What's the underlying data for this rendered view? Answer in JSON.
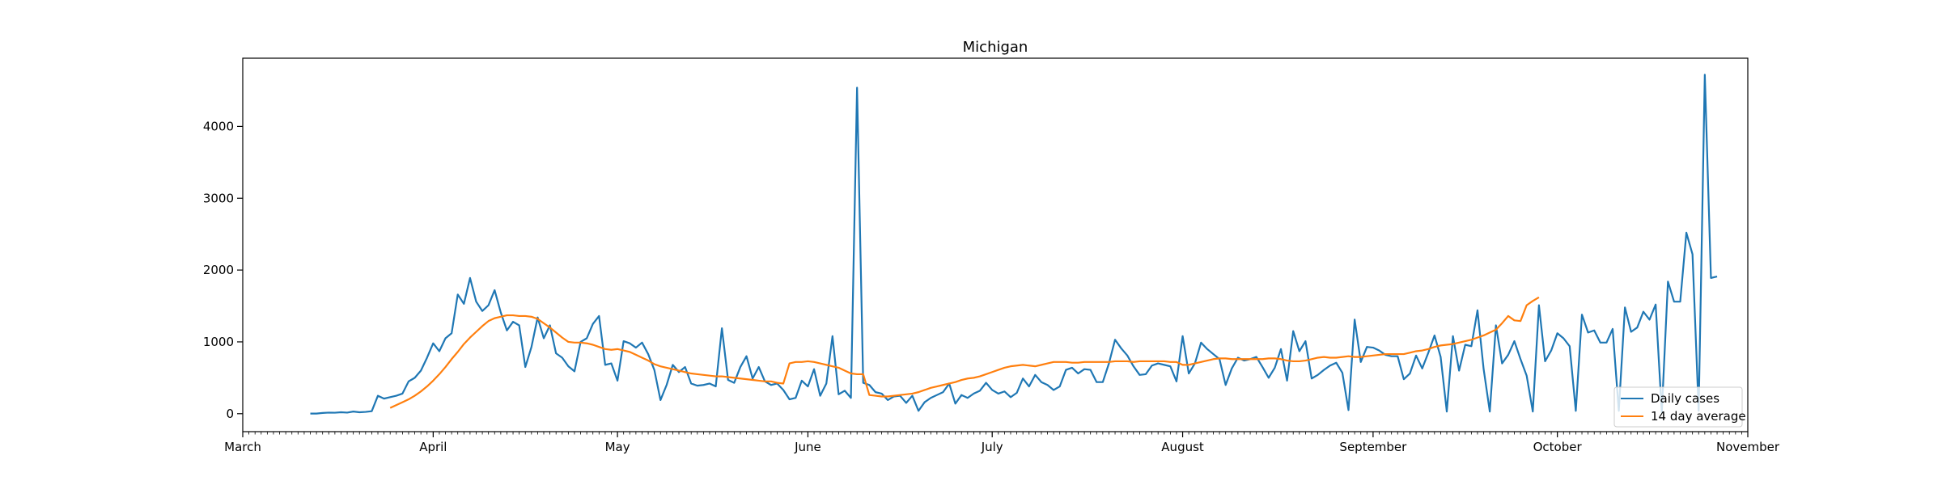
{
  "chart_data": {
    "type": "line",
    "title": "Michigan",
    "xlabel": "",
    "ylabel": "",
    "x_start": "2020-03-01",
    "x_end": "2020-11-01",
    "xlim": [
      "2020-03-01",
      "2020-11-01"
    ],
    "ylim": [
      -250,
      4950
    ],
    "x_ticks": [
      {
        "date": "2020-03-01",
        "label": "March"
      },
      {
        "date": "2020-04-01",
        "label": "April"
      },
      {
        "date": "2020-05-01",
        "label": "May"
      },
      {
        "date": "2020-06-01",
        "label": "June"
      },
      {
        "date": "2020-07-01",
        "label": "July"
      },
      {
        "date": "2020-08-01",
        "label": "August"
      },
      {
        "date": "2020-09-01",
        "label": "September"
      },
      {
        "date": "2020-10-01",
        "label": "October"
      },
      {
        "date": "2020-11-01",
        "label": "November"
      }
    ],
    "y_ticks": [
      0,
      1000,
      2000,
      3000,
      4000
    ],
    "grid": false,
    "legend_position": "bottom-right",
    "series": [
      {
        "name": "Daily cases",
        "color": "#1f77b4",
        "start_date": "2020-03-12",
        "values": [
          2,
          2,
          10,
          15,
          14,
          20,
          15,
          30,
          20,
          25,
          35,
          250,
          210,
          230,
          250,
          280,
          450,
          500,
          600,
          780,
          980,
          870,
          1050,
          1120,
          1660,
          1530,
          1890,
          1560,
          1430,
          1510,
          1720,
          1410,
          1160,
          1280,
          1230,
          650,
          930,
          1340,
          1050,
          1230,
          840,
          780,
          660,
          590,
          1000,
          1050,
          1250,
          1360,
          680,
          700,
          460,
          1010,
          980,
          920,
          990,
          830,
          610,
          190,
          400,
          680,
          580,
          650,
          420,
          390,
          400,
          420,
          380,
          1190,
          470,
          430,
          650,
          800,
          490,
          650,
          450,
          400,
          420,
          330,
          200,
          220,
          460,
          380,
          620,
          250,
          420,
          1080,
          270,
          320,
          220,
          4540,
          430,
          400,
          300,
          280,
          190,
          240,
          250,
          150,
          250,
          40,
          160,
          220,
          260,
          300,
          420,
          140,
          260,
          220,
          280,
          320,
          430,
          330,
          280,
          310,
          230,
          290,
          490,
          380,
          540,
          440,
          400,
          330,
          380,
          610,
          640,
          560,
          620,
          610,
          440,
          440,
          700,
          1030,
          910,
          810,
          660,
          540,
          550,
          670,
          700,
          680,
          660,
          450,
          1080,
          560,
          700,
          990,
          900,
          830,
          760,
          400,
          630,
          780,
          740,
          760,
          790,
          650,
          500,
          640,
          900,
          460,
          1150,
          870,
          1010,
          490,
          540,
          610,
          670,
          710,
          570,
          50,
          1310,
          720,
          930,
          920,
          880,
          820,
          800,
          800,
          480,
          560,
          810,
          630,
          850,
          1090,
          790,
          30,
          1080,
          600,
          960,
          940,
          1440,
          620,
          30,
          1230,
          700,
          820,
          1010,
          760,
          530,
          30,
          1510,
          730,
          880,
          1120,
          1050,
          940,
          40,
          1380,
          1130,
          1160,
          990,
          990,
          1180,
          40,
          1480,
          1140,
          1200,
          1420,
          1310,
          1520,
          20,
          1840,
          1560,
          1560,
          2520,
          2220,
          40,
          4720,
          1890,
          1910
        ]
      },
      {
        "name": "14 day average",
        "color": "#ff7f0e",
        "start_date": "2020-03-25",
        "values": [
          80,
          120,
          160,
          200,
          250,
          310,
          380,
          460,
          550,
          650,
          760,
          860,
          970,
          1060,
          1140,
          1220,
          1290,
          1330,
          1350,
          1370,
          1370,
          1360,
          1360,
          1350,
          1320,
          1260,
          1200,
          1130,
          1060,
          1000,
          990,
          990,
          980,
          960,
          930,
          900,
          890,
          900,
          880,
          860,
          820,
          780,
          740,
          690,
          660,
          640,
          620,
          600,
          580,
          560,
          550,
          540,
          530,
          520,
          520,
          510,
          500,
          490,
          480,
          470,
          460,
          450,
          450,
          430,
          420,
          700,
          720,
          720,
          730,
          720,
          700,
          680,
          660,
          640,
          600,
          560,
          550,
          550,
          260,
          250,
          240,
          240,
          250,
          260,
          270,
          280,
          300,
          330,
          360,
          380,
          400,
          420,
          440,
          470,
          490,
          500,
          520,
          550,
          580,
          610,
          640,
          660,
          670,
          680,
          670,
          660,
          680,
          700,
          720,
          720,
          720,
          710,
          710,
          720,
          720,
          720,
          720,
          720,
          730,
          730,
          730,
          720,
          730,
          730,
          730,
          730,
          730,
          720,
          720,
          680,
          680,
          700,
          720,
          740,
          760,
          770,
          770,
          760,
          760,
          760,
          760,
          760,
          760,
          770,
          770,
          760,
          740,
          730,
          730,
          740,
          760,
          780,
          790,
          780,
          780,
          790,
          800,
          790,
          790,
          800,
          810,
          820,
          830,
          830,
          830,
          830,
          850,
          870,
          880,
          900,
          930,
          950,
          960,
          970,
          990,
          1010,
          1030,
          1060,
          1090,
          1130,
          1170,
          1260,
          1360,
          1300,
          1290,
          1510,
          1570,
          1620
        ]
      }
    ]
  }
}
